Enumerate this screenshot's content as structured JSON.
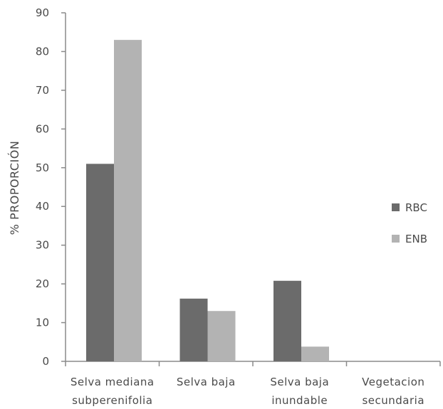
{
  "chart_data": {
    "type": "bar",
    "categories": [
      [
        "Selva mediana",
        "subperenifolia"
      ],
      [
        "Selva baja"
      ],
      [
        "Selva baja",
        "inundable"
      ],
      [
        "Vegetacion",
        "secundaria"
      ]
    ],
    "series": [
      {
        "name": "RBC",
        "values": [
          51,
          16.2,
          20.8,
          0
        ],
        "color": "#6b6b6b"
      },
      {
        "name": "ENB",
        "values": [
          83,
          13,
          3.8,
          0
        ],
        "color": "#b3b3b3"
      }
    ],
    "ylabel": "% PROPORCIÓN",
    "xlabel": "",
    "ylim": [
      0,
      90
    ],
    "yticks": [
      0,
      10,
      20,
      30,
      40,
      50,
      60,
      70,
      80,
      90
    ],
    "grid": false,
    "legend_position": "right"
  }
}
